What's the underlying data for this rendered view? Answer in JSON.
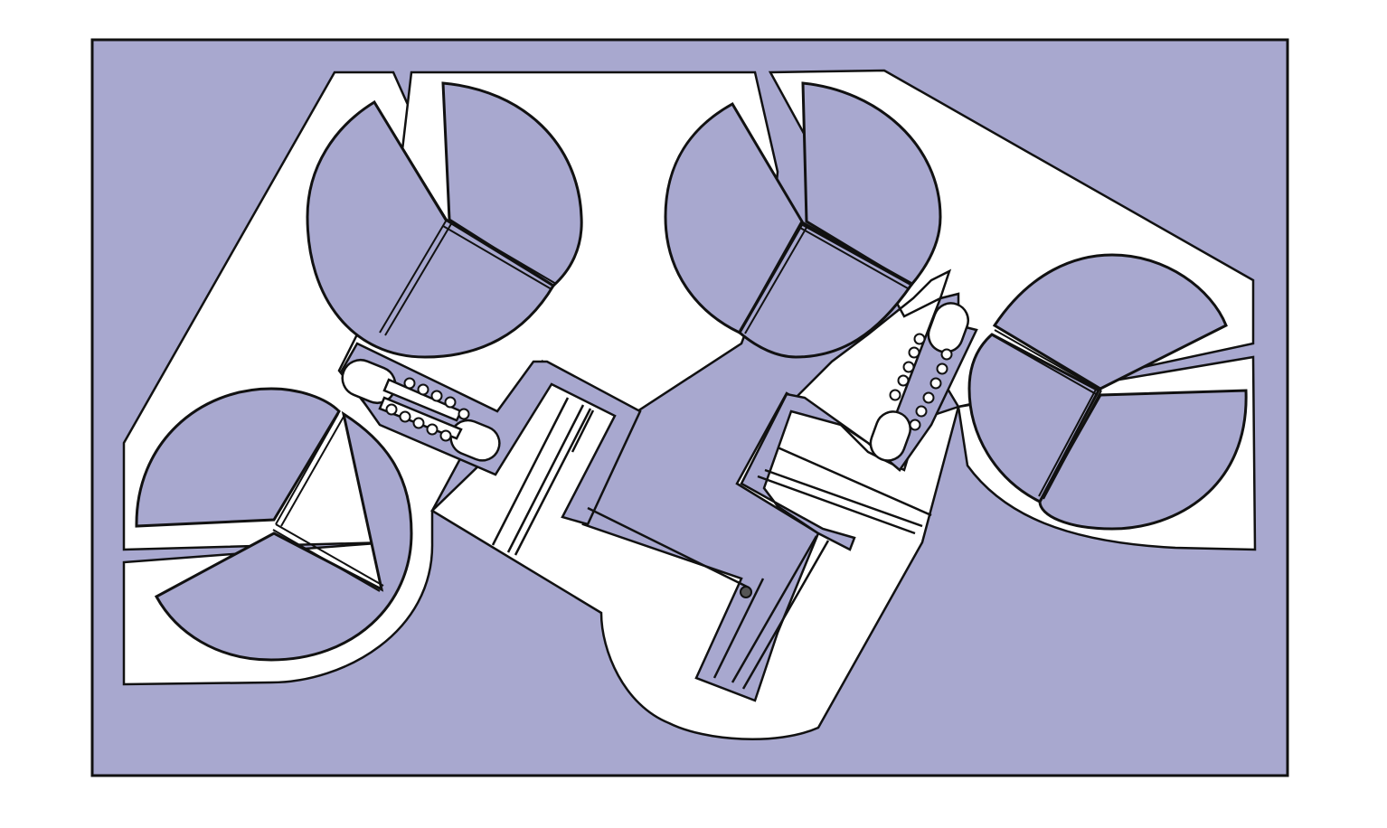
{
  "colors": {
    "plate": "#a8a8cf",
    "cutout": "#ffffff",
    "outline": "#111111",
    "page": "#ffffff"
  },
  "components": {
    "pads": [
      "left-top-pad",
      "left-bottom-pad",
      "right-top-pad",
      "right-bottom-pad"
    ],
    "hole_rows": 4,
    "holes_per_row": 5
  }
}
